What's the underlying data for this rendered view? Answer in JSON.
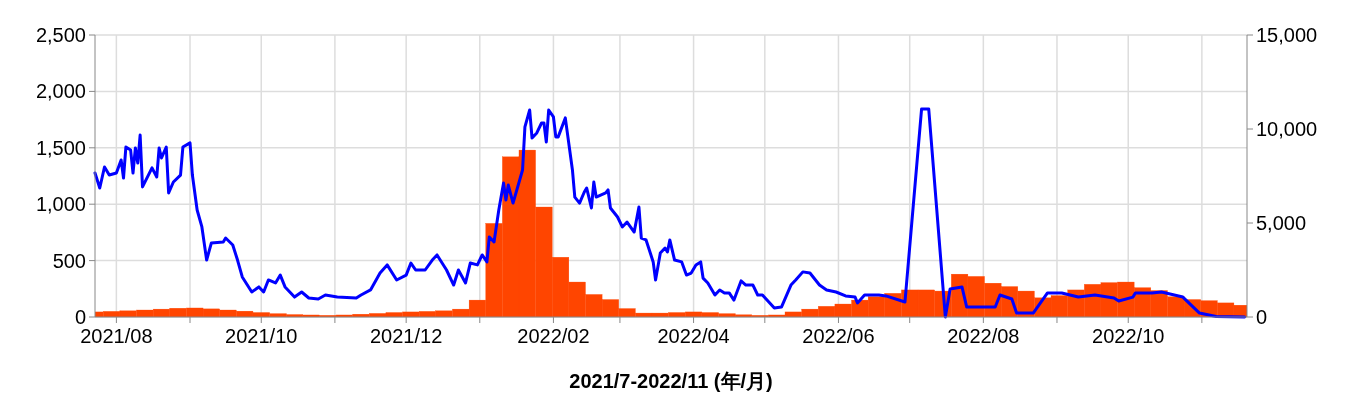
{
  "chart_data": {
    "type": "bar",
    "xlabel": "2021/7-2022/11 (年/月)",
    "grid": true,
    "xlim": [
      "2021-07-23",
      "2022-11-20"
    ],
    "xticks": [
      {
        "value": "2021-08",
        "label": "2021/08"
      },
      {
        "value": "2021-09",
        "label": null
      },
      {
        "value": "2021-10",
        "label": "2021/10"
      },
      {
        "value": "2021-11",
        "label": null
      },
      {
        "value": "2021-12",
        "label": "2021/12"
      },
      {
        "value": "2022-01",
        "label": null
      },
      {
        "value": "2022-02",
        "label": "2022/02"
      },
      {
        "value": "2022-03",
        "label": null
      },
      {
        "value": "2022-04",
        "label": "2022/04"
      },
      {
        "value": "2022-05",
        "label": null
      },
      {
        "value": "2022-06",
        "label": "2022/06"
      },
      {
        "value": "2022-07",
        "label": null
      },
      {
        "value": "2022-08",
        "label": "2022/08"
      },
      {
        "value": "2022-09",
        "label": null
      },
      {
        "value": "2022-10",
        "label": "2022/10"
      },
      {
        "value": "2022-11",
        "label": null
      }
    ],
    "ylim": [
      0,
      2500
    ],
    "yticks": [
      {
        "value": 0,
        "label": "0"
      },
      {
        "value": 500,
        "label": "500"
      },
      {
        "value": 1000,
        "label": "1,000"
      },
      {
        "value": 1500,
        "label": "1,500"
      },
      {
        "value": 2000,
        "label": "2,000"
      },
      {
        "value": 2500,
        "label": "2,500"
      }
    ],
    "y2lim": [
      0,
      15000
    ],
    "y2ticks": [
      {
        "value": 0,
        "label": "0"
      },
      {
        "value": 5000,
        "label": "5,000"
      },
      {
        "value": 10000,
        "label": "10,000"
      },
      {
        "value": 15000,
        "label": "15,000"
      }
    ],
    "series": [
      {
        "color": "#ff4500",
        "x": [
          "2021-07-23",
          "2021-07-30",
          "2021-08-06",
          "2021-08-13",
          "2021-08-20",
          "2021-08-27",
          "2021-09-03",
          "2021-09-10",
          "2021-09-17",
          "2021-09-24",
          "2021-10-01",
          "2021-10-08",
          "2021-10-15",
          "2021-10-22",
          "2021-10-29",
          "2021-11-05",
          "2021-11-12",
          "2021-11-19",
          "2021-11-26",
          "2021-12-03",
          "2021-12-10",
          "2021-12-17",
          "2021-12-24",
          "2021-12-31",
          "2022-01-07",
          "2022-01-14",
          "2022-01-21",
          "2022-01-28",
          "2022-02-04",
          "2022-02-11",
          "2022-02-18",
          "2022-02-25",
          "2022-03-04",
          "2022-03-11",
          "2022-03-18",
          "2022-03-25",
          "2022-04-01",
          "2022-04-08",
          "2022-04-15",
          "2022-04-22",
          "2022-04-29",
          "2022-05-06",
          "2022-05-13",
          "2022-05-20",
          "2022-05-27",
          "2022-06-03",
          "2022-06-10",
          "2022-06-17",
          "2022-06-24",
          "2022-07-01",
          "2022-07-08",
          "2022-07-15",
          "2022-07-22",
          "2022-07-29",
          "2022-08-05",
          "2022-08-12",
          "2022-08-19",
          "2022-08-26",
          "2022-09-02",
          "2022-09-09",
          "2022-09-16",
          "2022-09-23",
          "2022-09-30",
          "2022-10-07",
          "2022-10-14",
          "2022-10-21",
          "2022-10-28",
          "2022-11-04",
          "2022-11-11",
          "2022-11-18"
        ],
        "values": [
          45,
          50,
          55,
          62,
          70,
          78,
          80,
          72,
          62,
          52,
          40,
          30,
          22,
          18,
          15,
          18,
          25,
          32,
          40,
          45,
          50,
          55,
          70,
          150,
          830,
          1420,
          1480,
          975,
          530,
          310,
          200,
          155,
          75,
          35,
          35,
          40,
          45,
          40,
          30,
          20,
          15,
          18,
          45,
          70,
          95,
          115,
          150,
          180,
          210,
          240,
          240,
          230,
          380,
          360,
          300,
          270,
          230,
          170,
          190,
          240,
          290,
          305,
          310,
          260,
          235,
          180,
          155,
          145,
          125,
          105
        ]
      },
      {
        "type": "line",
        "axis": "y2",
        "color": "#0000ff",
        "x": [
          "2021-07-23",
          "2021-07-25",
          "2021-07-27",
          "2021-07-29",
          "2021-08-01",
          "2021-08-03",
          "2021-08-04",
          "2021-08-05",
          "2021-08-07",
          "2021-08-08",
          "2021-08-09",
          "2021-08-10",
          "2021-08-11",
          "2021-08-12",
          "2021-08-16",
          "2021-08-18",
          "2021-08-19",
          "2021-08-20",
          "2021-08-22",
          "2021-08-23",
          "2021-08-25",
          "2021-08-28",
          "2021-08-29",
          "2021-09-01",
          "2021-09-02",
          "2021-09-04",
          "2021-09-06",
          "2021-09-08",
          "2021-09-10",
          "2021-09-15",
          "2021-09-16",
          "2021-09-19",
          "2021-09-21",
          "2021-09-23",
          "2021-09-27",
          "2021-09-30",
          "2021-10-02",
          "2021-10-04",
          "2021-10-07",
          "2021-10-09",
          "2021-10-11",
          "2021-10-15",
          "2021-10-18",
          "2021-10-21",
          "2021-10-25",
          "2021-10-28",
          "2021-11-02",
          "2021-11-10",
          "2021-11-12",
          "2021-11-16",
          "2021-11-20",
          "2021-11-23",
          "2021-11-27",
          "2021-12-01",
          "2021-12-03",
          "2021-12-05",
          "2021-12-09",
          "2021-12-12",
          "2021-12-14",
          "2021-12-18",
          "2021-12-21",
          "2021-12-23",
          "2021-12-26",
          "2021-12-28",
          "2021-12-31",
          "2022-01-02",
          "2022-01-04",
          "2022-01-05",
          "2022-01-07",
          "2022-01-09",
          "2022-01-11",
          "2022-01-12",
          "2022-01-13",
          "2022-01-15",
          "2022-01-19",
          "2022-01-20",
          "2022-01-22",
          "2022-01-23",
          "2022-01-25",
          "2022-01-27",
          "2022-01-28",
          "2022-01-29",
          "2022-01-30",
          "2022-02-01",
          "2022-02-02",
          "2022-02-03",
          "2022-02-06",
          "2022-02-09",
          "2022-02-10",
          "2022-02-12",
          "2022-02-14",
          "2022-02-15",
          "2022-02-17",
          "2022-02-18",
          "2022-02-19",
          "2022-02-23",
          "2022-02-24",
          "2022-02-25",
          "2022-02-28",
          "2022-03-02",
          "2022-03-04",
          "2022-03-07",
          "2022-03-09",
          "2022-03-10",
          "2022-03-12",
          "2022-03-15",
          "2022-03-16",
          "2022-03-18",
          "2022-03-20",
          "2022-03-21",
          "2022-03-22",
          "2022-03-24",
          "2022-03-27",
          "2022-03-29",
          "2022-03-31",
          "2022-04-02",
          "2022-04-04",
          "2022-04-05",
          "2022-04-07",
          "2022-04-10",
          "2022-04-12",
          "2022-04-14",
          "2022-04-16",
          "2022-04-18",
          "2022-04-21",
          "2022-04-23",
          "2022-04-26",
          "2022-04-28",
          "2022-04-30",
          "2022-05-05",
          "2022-05-08",
          "2022-05-12",
          "2022-05-14",
          "2022-05-17",
          "2022-05-20",
          "2022-05-24",
          "2022-05-27",
          "2022-05-31",
          "2022-06-04",
          "2022-06-08",
          "2022-06-09",
          "2022-06-12",
          "2022-06-18",
          "2022-06-21",
          "2022-06-29",
          "2022-07-06",
          "2022-07-09",
          "2022-07-16",
          "2022-07-18",
          "2022-07-23",
          "2022-07-25",
          "2022-08-06",
          "2022-08-08",
          "2022-08-13",
          "2022-08-15",
          "2022-08-22",
          "2022-08-28",
          "2022-09-03",
          "2022-09-10",
          "2022-09-17",
          "2022-09-25",
          "2022-09-27",
          "2022-10-03",
          "2022-10-04",
          "2022-10-11",
          "2022-10-15",
          "2022-10-24",
          "2022-10-31",
          "2022-11-07",
          "2022-11-19"
        ],
        "values": [
          7660,
          6860,
          7980,
          7550,
          7660,
          8350,
          7390,
          9040,
          8880,
          7660,
          8990,
          8190,
          9680,
          6920,
          7930,
          7450,
          8990,
          8460,
          9040,
          6600,
          7180,
          7550,
          9040,
          9260,
          7550,
          5690,
          4790,
          3030,
          3940,
          3990,
          4200,
          3830,
          3030,
          2130,
          1330,
          1600,
          1330,
          1970,
          1810,
          2230,
          1600,
          1060,
          1330,
          1010,
          960,
          1170,
          1060,
          1010,
          1170,
          1440,
          2340,
          2770,
          1970,
          2230,
          2870,
          2500,
          2500,
          3030,
          3300,
          2500,
          1700,
          2500,
          1810,
          2870,
          2770,
          3300,
          2930,
          4260,
          3990,
          5690,
          7130,
          6220,
          7020,
          6060,
          7820,
          10110,
          11010,
          9520,
          9790,
          10320,
          10320,
          9310,
          11010,
          10640,
          9580,
          9580,
          10590,
          7820,
          6380,
          6060,
          6650,
          6860,
          5800,
          7180,
          6380,
          6600,
          6760,
          5800,
          5320,
          4790,
          5050,
          4520,
          5850,
          4200,
          4100,
          2930,
          1970,
          3400,
          3670,
          3460,
          4100,
          3030,
          2930,
          2230,
          2340,
          2770,
          2930,
          2070,
          1810,
          1170,
          1440,
          1280,
          1280,
          900,
          1920,
          1700,
          1700,
          1170,
          1170,
          480,
          530,
          1700,
          1970,
          2400,
          2340,
          1700,
          1440,
          1330,
          1120,
          1060,
          750,
          1170,
          1170,
          1120,
          800,
          11070,
          11070,
          0,
          1490,
          1600,
          530,
          530,
          1170,
          960,
          210,
          210,
          1280,
          1280,
          1060,
          1170,
          1010,
          850,
          1060,
          1280,
          1280,
          1330,
          1060,
          210,
          30,
          0
        ]
      }
    ]
  }
}
